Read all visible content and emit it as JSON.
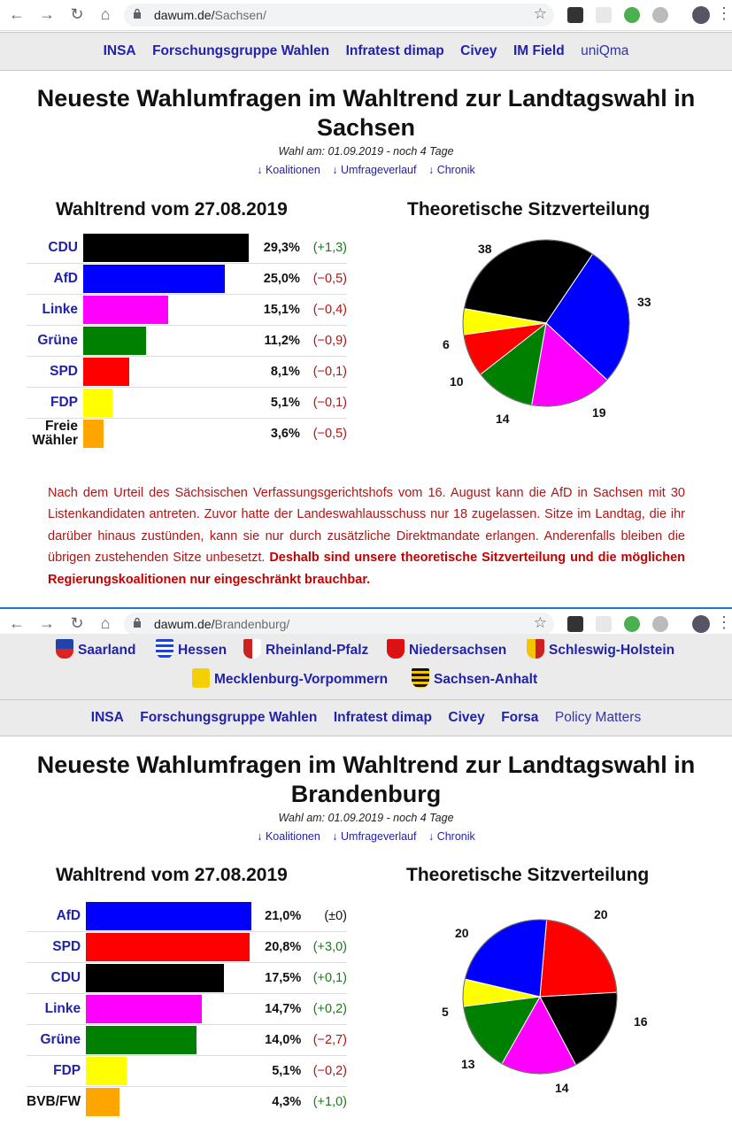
{
  "screens": [
    {
      "url_host": "dawum.de/",
      "url_path": "Sachsen/",
      "institutes": [
        "INSA",
        "Forschungsgruppe Wahlen",
        "Infratest dimap",
        "Civey",
        "IM Field",
        "uniQma"
      ],
      "title_line1": "Neueste Wahlumfragen im Wahltrend zur Landtagswahl in",
      "title_line2": "Sachsen",
      "election_date": "Wahl am: 01.09.2019 - noch 4 Tage",
      "links": [
        "↓ Koalitionen",
        "↓ Umfrageverlauf",
        "↓ Chronik"
      ],
      "trend_heading": "Wahltrend vom 27.08.2019",
      "seats_heading": "Theoretische Sitzverteilung",
      "note_text": "Nach dem Urteil des Sächsischen Verfassungsgerichtshofs vom 16. August kann die AfD in Sachsen mit 30 Listenkandidaten antreten. Zuvor hatte der Landeswahlausschuss nur 18 zugelassen. Sitze im Landtag, die ihr darüber hinaus zustünden, kann sie nur durch zusätzliche Direktmandate erlangen. Anderenfalls bleiben die übrigen zustehenden Sitze unbesetzt.",
      "note_bold": "Deshalb sind unsere theoretische Sitzverteilung und die möglichen Regierungskoalitionen nur eingeschränkt brauchbar."
    },
    {
      "url_host": "dawum.de/",
      "url_path": "Brandenburg/",
      "states": [
        "Saarland",
        "Hessen",
        "Rheinland-Pfalz",
        "Niedersachsen",
        "Schleswig-Holstein",
        "Mecklenburg-Vorpommern",
        "Sachsen-Anhalt"
      ],
      "institutes": [
        "INSA",
        "Forschungsgruppe Wahlen",
        "Infratest dimap",
        "Civey",
        "Forsa",
        "Policy Matters"
      ],
      "title_line1": "Neueste Wahlumfragen im Wahltrend zur Landtagswahl in",
      "title_line2": "Brandenburg",
      "election_date": "Wahl am: 01.09.2019 - noch 4 Tage",
      "links": [
        "↓ Koalitionen",
        "↓ Umfrageverlauf",
        "↓ Chronik"
      ],
      "trend_heading": "Wahltrend vom 27.08.2019",
      "seats_heading": "Theoretische Sitzverteilung"
    }
  ],
  "chart_data": [
    {
      "type": "bar",
      "title": "Wahltrend vom 27.08.2019",
      "categories": [
        "CDU",
        "AfD",
        "Linke",
        "Grüne",
        "SPD",
        "FDP",
        "Freie Wähler"
      ],
      "values": [
        29.3,
        25.0,
        15.1,
        11.2,
        8.1,
        5.1,
        3.6
      ],
      "value_labels": [
        "29,3%",
        "25,0%",
        "15,1%",
        "11,2%",
        "8,1%",
        "5,1%",
        "3,6%"
      ],
      "changes": [
        "(+1,3)",
        "(−0,5)",
        "(−0,4)",
        "(−0,9)",
        "(−0,1)",
        "(−0,1)",
        "(−0,5)"
      ],
      "colors": [
        "#000000",
        "#0000ff",
        "#ff00ff",
        "#008000",
        "#ff0000",
        "#ffff00",
        "#ffa500"
      ]
    },
    {
      "type": "pie",
      "title": "Theoretische Sitzverteilung",
      "labels": [
        "CDU",
        "AfD",
        "Linke",
        "Grüne",
        "SPD",
        "FDP"
      ],
      "values": [
        38,
        33,
        19,
        14,
        10,
        6
      ],
      "colors": [
        "#000000",
        "#0000ff",
        "#ff00ff",
        "#008000",
        "#ff0000",
        "#ffff00"
      ]
    },
    {
      "type": "bar",
      "title": "Wahltrend vom 27.08.2019",
      "categories": [
        "AfD",
        "SPD",
        "CDU",
        "Linke",
        "Grüne",
        "FDP",
        "BVB/FW"
      ],
      "values": [
        21.0,
        20.8,
        17.5,
        14.7,
        14.0,
        5.1,
        4.3
      ],
      "value_labels": [
        "21,0%",
        "20,8%",
        "17,5%",
        "14,7%",
        "14,0%",
        "5,1%",
        "4,3%"
      ],
      "changes": [
        "(±0)",
        "(+3,0)",
        "(+0,1)",
        "(+0,2)",
        "(−2,7)",
        "(−0,2)",
        "(+1,0)"
      ],
      "colors": [
        "#0000ff",
        "#ff0000",
        "#000000",
        "#ff00ff",
        "#008000",
        "#ffff00",
        "#ffa500"
      ]
    },
    {
      "type": "pie",
      "title": "Theoretische Sitzverteilung",
      "labels": [
        "SPD",
        "CDU",
        "Linke",
        "Grüne",
        "FDP",
        "AfD"
      ],
      "values": [
        20,
        16,
        14,
        13,
        5,
        20
      ],
      "colors": [
        "#ff0000",
        "#000000",
        "#ff00ff",
        "#008000",
        "#ffff00",
        "#0000ff"
      ]
    }
  ]
}
